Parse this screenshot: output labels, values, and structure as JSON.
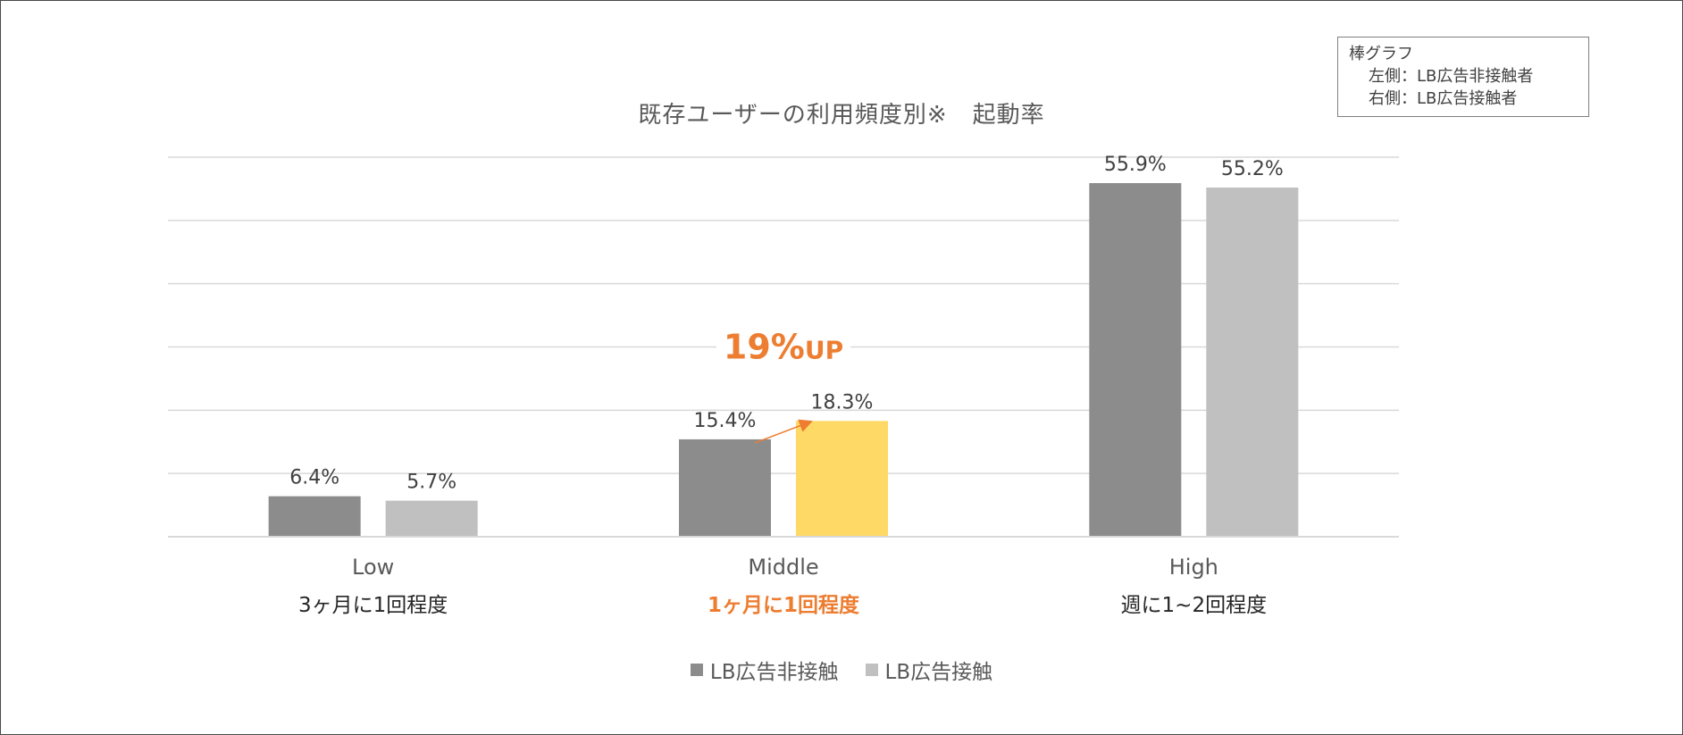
{
  "chart_data": {
    "type": "bar",
    "title": "既存ユーザーの利用頻度別※",
    "title_suffix": "起動率",
    "categories": [
      "Low",
      "Middle",
      "High"
    ],
    "sub_labels": [
      "3ヶ月に1回程度",
      "1ヶ月に1回程度",
      "週に1~2回程度"
    ],
    "series": [
      {
        "name": "LB広告非接触",
        "values": [
          6.4,
          15.4,
          55.9
        ],
        "labels": [
          "6.4%",
          "15.4%",
          "55.9%"
        ],
        "color": "#8c8c8c"
      },
      {
        "name": "LB広告接触",
        "values": [
          5.7,
          18.3,
          55.2
        ],
        "labels": [
          "5.7%",
          "18.3%",
          "55.2%"
        ],
        "color": "#c0c0c0"
      }
    ],
    "highlight": {
      "category_index": 1,
      "color": "#ffd966",
      "label_color": "#ed7d31",
      "annotation_value": "19%",
      "annotation_unit": "UP"
    },
    "ylim": [
      0,
      60
    ],
    "grid": true,
    "legend_position": "bottom"
  },
  "note": {
    "line1": "棒グラフ",
    "line2": "左側：LB広告非接触者",
    "line3": "右側：LB広告接触者"
  }
}
